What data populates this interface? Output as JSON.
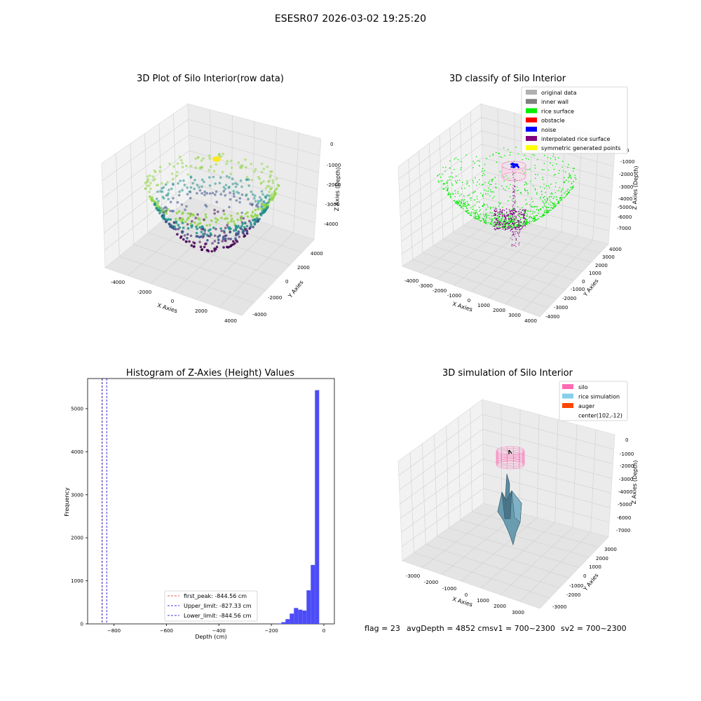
{
  "suptitle": "ESESR07 2026-03-02 19:25:20",
  "status": {
    "flag": "flag = 23",
    "avg": "avgDepth = 4852 cmsv1 = 700~2300",
    "sv2": "sv2 = 700~2300"
  },
  "chart_data": [
    {
      "type": "scatter",
      "title": "3D Plot of Silo Interior(row data)",
      "xlabel": "X Axies",
      "ylabel": "Y Axies",
      "zlabel": "Z Axies (Depth)",
      "xticks": [
        "-4000",
        "-2000",
        "0",
        "2000",
        "4000"
      ],
      "yticks": [
        "-4000",
        "-2000",
        "0",
        "2000",
        "4000"
      ],
      "zticks": [
        "0",
        "-1000",
        "-2000",
        "-3000",
        "-4000"
      ],
      "xlim": [
        -4500,
        4500
      ],
      "ylim": [
        -4500,
        4500
      ],
      "zlim": [
        -4500,
        200
      ],
      "colormap": "viridis",
      "colors": {
        "low": "#440154",
        "mid": "#21918c",
        "high": "#8fd744",
        "sensor": "#fde725"
      },
      "points_description": "bowl-shaped point cloud of silo interior, colored by depth"
    },
    {
      "type": "scatter",
      "title": "3D classify of Silo Interior",
      "xlabel": "X Axies",
      "ylabel": "Y Axies",
      "zlabel": "Z Axies (Depth)",
      "xticks": [
        "-4000",
        "-3000",
        "-2000",
        "-1000",
        "0",
        "1000",
        "2000",
        "3000",
        "4000"
      ],
      "yticks": [
        "-4000",
        "-3000",
        "-2000",
        "-1000",
        "0",
        "1000",
        "2000",
        "3000",
        "4000"
      ],
      "zticks": [
        "0",
        "-1000",
        "-2000",
        "-3000",
        "-4000",
        "-5000",
        "-6000",
        "-7000"
      ],
      "legend": [
        {
          "label": "original data",
          "color": "#b0b0b0"
        },
        {
          "label": "inner wall",
          "color": "#808080"
        },
        {
          "label": "rice surface",
          "color": "#00ee00"
        },
        {
          "label": "obstacle",
          "color": "#ff0000"
        },
        {
          "label": "noise",
          "color": "#0000ff"
        },
        {
          "label": "interpolated rice surface",
          "color": "#800080"
        },
        {
          "label": "symmetric generated points",
          "color": "#ffff00"
        }
      ]
    },
    {
      "type": "bar",
      "title": "Histogram of Z-Axies (Height) Values",
      "xlabel": "Depth (cm)",
      "ylabel": "Frequency",
      "xlim": [
        -900,
        40
      ],
      "ylim": [
        0,
        5700
      ],
      "xticks": [
        -800,
        -600,
        -400,
        -200,
        0
      ],
      "yticks": [
        0,
        1000,
        2000,
        3000,
        4000,
        5000
      ],
      "bar_color": "#4c4cf7",
      "bin_width": 16,
      "bins": [
        {
          "x": -170,
          "value": 10
        },
        {
          "x": -154,
          "value": 40
        },
        {
          "x": -138,
          "value": 110
        },
        {
          "x": -122,
          "value": 240
        },
        {
          "x": -106,
          "value": 370
        },
        {
          "x": -90,
          "value": 330
        },
        {
          "x": -74,
          "value": 310
        },
        {
          "x": -58,
          "value": 780
        },
        {
          "x": -42,
          "value": 1370
        },
        {
          "x": -26,
          "value": 5430
        }
      ],
      "vlines": [
        {
          "x": -844.56,
          "color": "#d62728",
          "label": "first_peak: -844.56 cm"
        },
        {
          "x": -827.33,
          "color": "#0000cc",
          "label": "Upper_limit: -827.33 cm"
        },
        {
          "x": -844.56,
          "color": "#0000cc",
          "label": "Lower_limit: -844.56 cm"
        }
      ]
    },
    {
      "type": "surface",
      "title": "3D simulation of Silo Interior",
      "xlabel": "X Axies",
      "ylabel": "Y Axies",
      "zlabel": "Z Axies (Depth)",
      "xticks": [
        "-3000",
        "-2000",
        "-1000",
        "0",
        "1000",
        "2000",
        "3000"
      ],
      "yticks": [
        "-3000",
        "-2000",
        "-1000",
        "0",
        "1000",
        "2000",
        "3000"
      ],
      "zticks": [
        "0",
        "-1000",
        "-2000",
        "-3000",
        "-4000",
        "-5000",
        "-6000",
        "-7000"
      ],
      "legend": [
        {
          "label": "silo",
          "color": "#ff69b4",
          "kind": "patch"
        },
        {
          "label": "rice simulation",
          "color": "#87ceeb",
          "kind": "patch"
        },
        {
          "label": "auger",
          "color": "#ff4500",
          "kind": "patch"
        },
        {
          "label": "center(102,-12)",
          "color": "#ffffff",
          "kind": "none"
        }
      ]
    }
  ]
}
